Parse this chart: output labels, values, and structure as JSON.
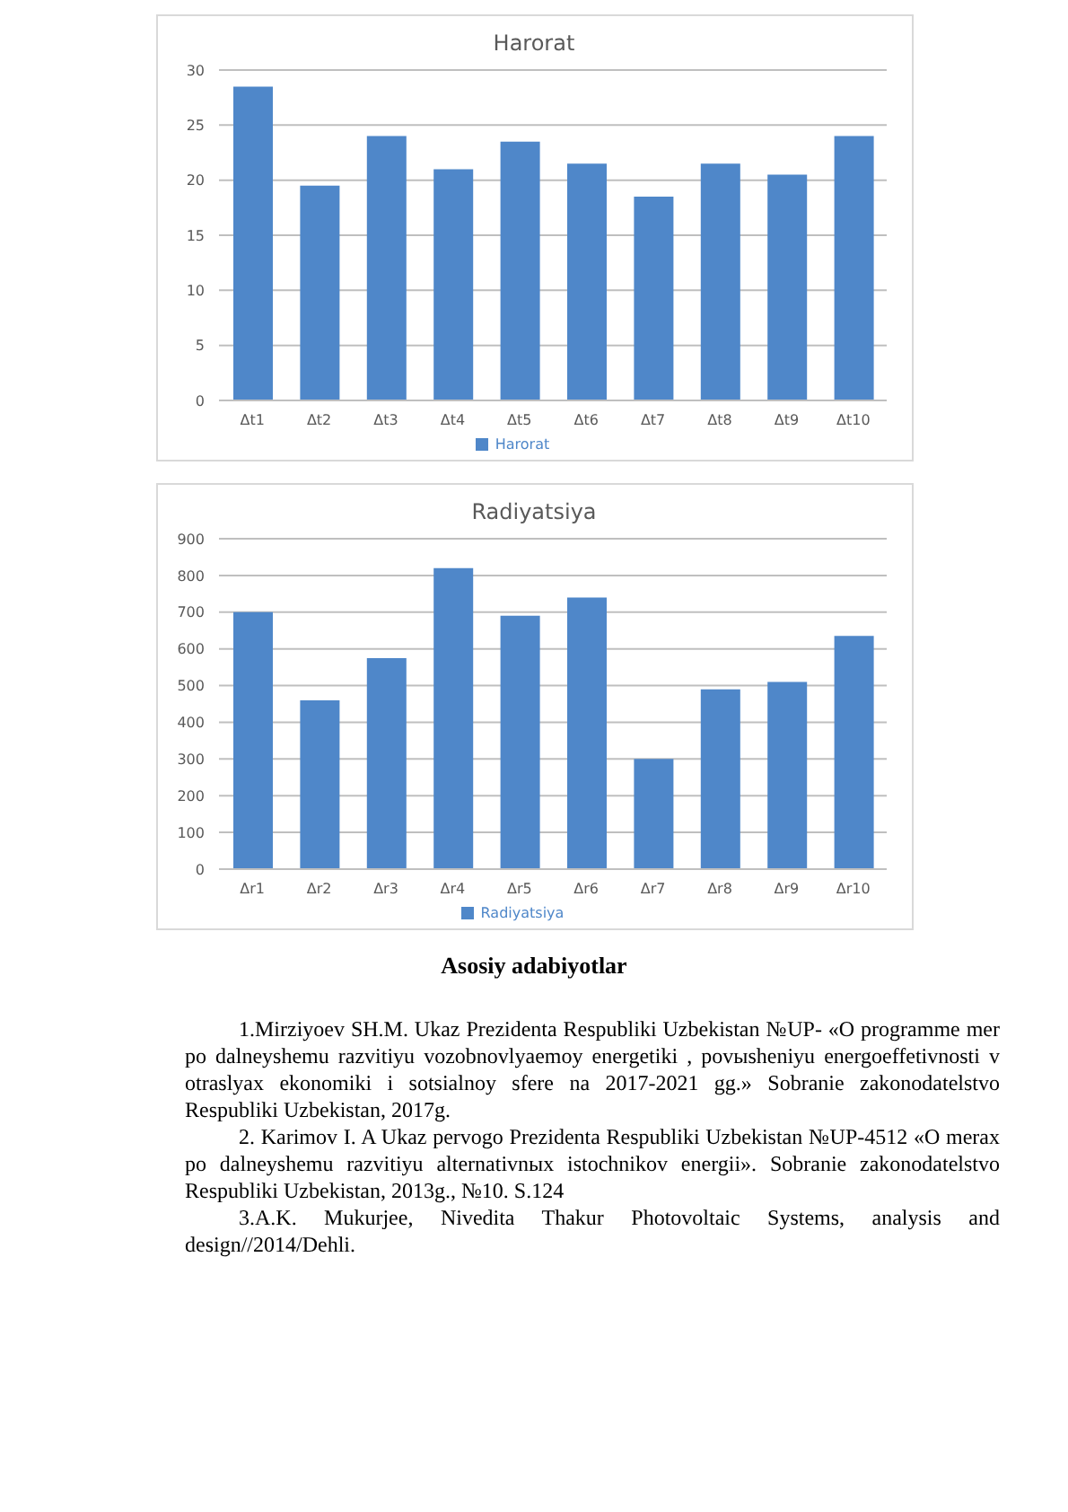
{
  "chart_data": [
    {
      "type": "bar",
      "title": "Harorat",
      "categories": [
        "Δt1",
        "Δt2",
        "Δt3",
        "Δt4",
        "Δt5",
        "Δt6",
        "Δt7",
        "Δt8",
        "Δt9",
        "Δt10"
      ],
      "series": [
        {
          "name": "Harorat",
          "color": "#4f87c9",
          "values": [
            28.5,
            19.5,
            24,
            21,
            23.5,
            21.5,
            18.5,
            21.5,
            20.5,
            24
          ]
        }
      ],
      "ylim": [
        0,
        30
      ],
      "yticks": [
        0,
        5,
        10,
        15,
        20,
        25,
        30
      ],
      "grid": "y",
      "legend": "bottom"
    },
    {
      "type": "bar",
      "title": "Radiyatsiya",
      "categories": [
        "Δr1",
        "Δr2",
        "Δr3",
        "Δr4",
        "Δr5",
        "Δr6",
        "Δr7",
        "Δr8",
        "Δr9",
        "Δr10"
      ],
      "series": [
        {
          "name": "Radiyatsiya",
          "color": "#4f87c9",
          "values": [
            700,
            460,
            575,
            820,
            690,
            740,
            300,
            490,
            510,
            635
          ]
        }
      ],
      "ylim": [
        0,
        900
      ],
      "yticks": [
        0,
        100,
        200,
        300,
        400,
        500,
        600,
        700,
        800,
        900
      ],
      "grid": "y",
      "legend": "bottom",
      "annotations": [
        "Asosiy adabiyotlar",
        "1.Mirziyoev SH.M. Ukaz  Prezidenta Respubliki Uzbekistan №UP- «O programme mer po dalneyshemu razvitiyu vozobnovlyaemoy energetiki , povыsheniyu energoeffetivnosti v otraslyax ekonomiki i sotsialnoy sfere na 2017-2021 gg.» Sobranie zakonodatelstvo Respubliki Uzbekistan, 2017g.",
        "2. Karimov I. A Ukaz pervogo Prezidenta Respubliki Uzbekistan №UP-4512 «O merax po dalneyshemu razvitiyu alternativnых istochnikov energii». Sobranie zakonodatelstvo Respubliki Uzbekistan, 2013g., №10. S.124",
        "3.A.K. Mukurjee, Nivedita Thakur Photovoltaic Systems, analysis and design//2014/Dehli."
      ]
    }
  ]
}
